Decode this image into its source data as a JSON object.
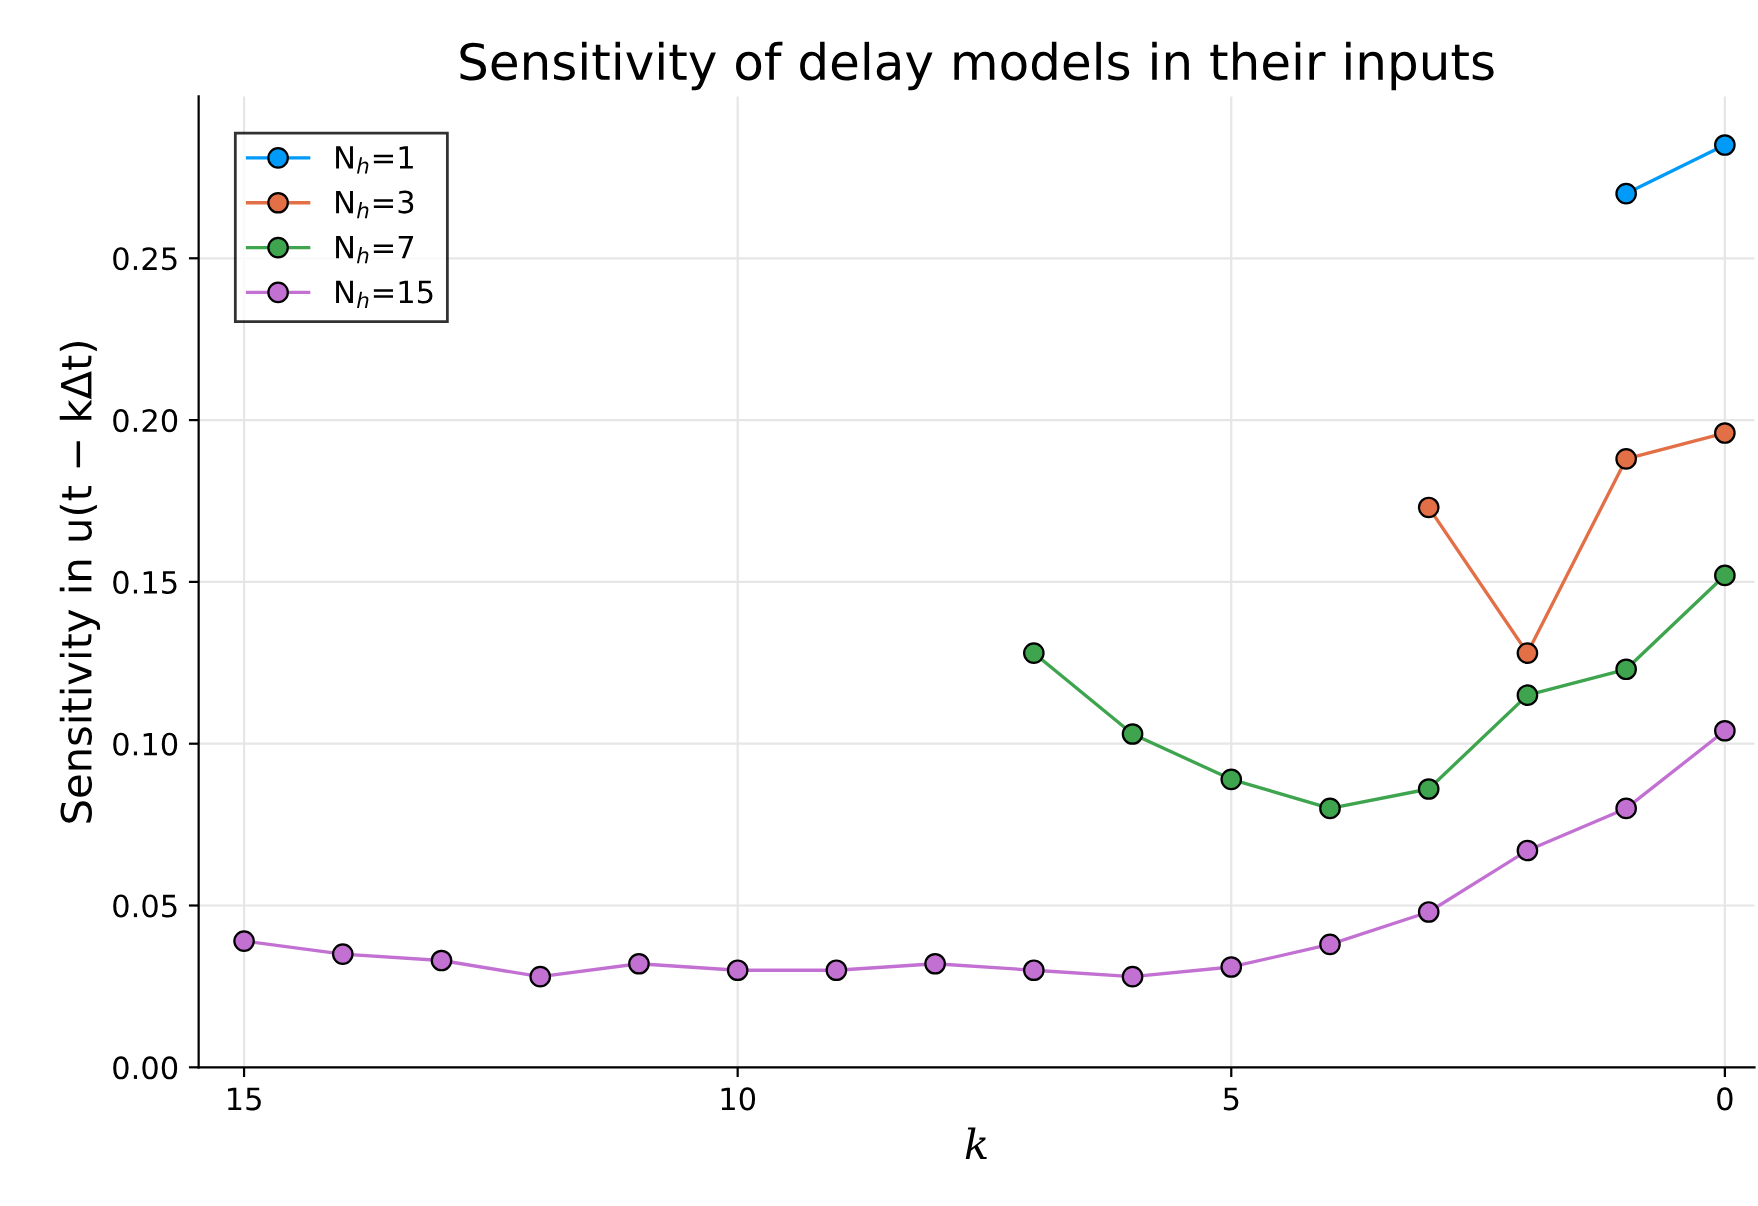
{
  "chart_data": {
    "type": "line",
    "title": "Sensitivity of delay models in their inputs",
    "xlabel": "k",
    "ylabel": "Sensitivity in u(t − kΔt)",
    "xlim": [
      15.46,
      -0.3
    ],
    "ylim": [
      0,
      0.3
    ],
    "xticks": [
      15,
      10,
      5,
      0
    ],
    "yticks": [
      {
        "value": 0,
        "label": "0.00"
      },
      {
        "value": 0.05,
        "label": "0.05"
      },
      {
        "value": 0.1,
        "label": "0.10"
      },
      {
        "value": 0.15,
        "label": "0.15"
      },
      {
        "value": 0.2,
        "label": "0.20"
      },
      {
        "value": 0.25,
        "label": "0.25"
      }
    ],
    "grid": true,
    "legend": "top left",
    "marker": "circle",
    "line_style": "solid",
    "series": [
      {
        "name": "N$_{h}$=1",
        "color": "#009af9",
        "x": [
          1,
          0
        ],
        "values": [
          0.27,
          0.285
        ]
      },
      {
        "name": "N$_{h}$=3",
        "color": "#e26f46",
        "x": [
          3,
          2,
          1,
          0
        ],
        "values": [
          0.173,
          0.128,
          0.188,
          0.196
        ]
      },
      {
        "name": "N$_{h}$=7",
        "color": "#3ea44e",
        "x": [
          7,
          6,
          5,
          4,
          3,
          2,
          1,
          0
        ],
        "values": [
          0.128,
          0.103,
          0.089,
          0.08,
          0.086,
          0.115,
          0.123,
          0.152
        ]
      },
      {
        "name": "N$_{h}$=15",
        "color": "#c271d2",
        "x": [
          15,
          14,
          13,
          12,
          11,
          10,
          9,
          8,
          7,
          6,
          5,
          4,
          3,
          2,
          1,
          0
        ],
        "values": [
          0.039,
          0.035,
          0.033,
          0.028,
          0.032,
          0.03,
          0.03,
          0.032,
          0.03,
          0.028,
          0.031,
          0.038,
          0.048,
          0.067,
          0.08,
          0.104
        ]
      }
    ]
  }
}
